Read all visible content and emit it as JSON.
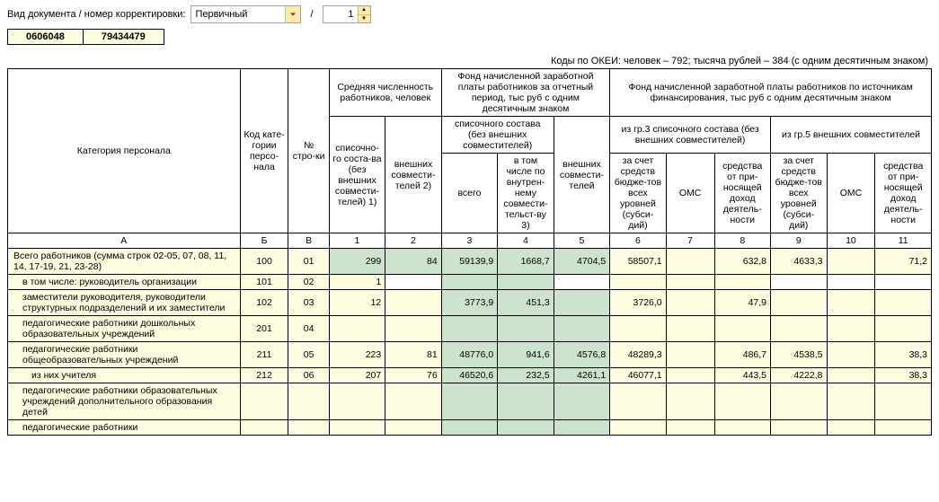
{
  "toolbar": {
    "label": "Вид документа / номер корректировки:",
    "doc_type": "Первичный",
    "separator": "/",
    "correction_no": "1"
  },
  "mini_header": {
    "cells": [
      "0606048",
      "79434479"
    ]
  },
  "okei_line": "Коды по ОКЕИ: человек – 792; тысяча рублей – 384 (с одним десятичным знаком)",
  "colors": {
    "yellow": "#fcfce0",
    "green": "#cde3cd",
    "white": "#ffffff",
    "border": "#000000"
  },
  "header": {
    "cat": "Категория персонала",
    "code": "Код кате-гории персо-нала",
    "row": "№ стро-ки",
    "grp_avg": "Средняя численность работников, человек",
    "grp_fund1": "Фонд начисленной заработной платы работников за отчетный период, тыс руб с одним десятичным знаком",
    "grp_fund2": "Фонд начисленной заработной платы работников по источникам финансирования, тыс руб с одним десятичным знаком",
    "c1": "списочно-го соста-ва (без внешних совмести-телей) 1)",
    "c2": "внешних совмести-телей 2)",
    "c34_top": "списочного состава (без внешних совместителей)",
    "c5": "внешних совмести-телей",
    "c3": "всего",
    "c4": "в том числе по внутрен-нему совмести-тельст-ву 3)",
    "c678_top": "из гр.3 списочного состава (без внешних совместителей)",
    "c91011_top": "из гр.5 внешних совместителей",
    "c6": "за счет средств бюдже-тов всех уровней (субси-дий)",
    "c7": "ОМС",
    "c8": "средства от при-носящей доход деятель-ности",
    "c9": "за счет средств бюдже-тов всех уровней (субси-дий)",
    "c10": "ОМС",
    "c11": "средства от при-носящей доход деятель-ности"
  },
  "letters": [
    "А",
    "Б",
    "В",
    "1",
    "2",
    "3",
    "4",
    "5",
    "6",
    "7",
    "8",
    "9",
    "10",
    "11"
  ],
  "rows": [
    {
      "label": "Всего работников (сумма строк 02-05, 07, 08, 11, 14, 17-19, 21, 23-28)",
      "indent": 0,
      "code": "100",
      "row": "01",
      "cells": [
        {
          "v": "299",
          "c": "green"
        },
        {
          "v": "84",
          "c": "green"
        },
        {
          "v": "59139,9",
          "c": "green"
        },
        {
          "v": "1668,7",
          "c": "green"
        },
        {
          "v": "4704,5",
          "c": "green"
        },
        {
          "v": "58507,1",
          "c": "yellow"
        },
        {
          "v": "",
          "c": "yellow"
        },
        {
          "v": "632,8",
          "c": "yellow"
        },
        {
          "v": "4633,3",
          "c": "yellow"
        },
        {
          "v": "",
          "c": "yellow"
        },
        {
          "v": "71,2",
          "c": "yellow"
        }
      ]
    },
    {
      "label": "в том числе: руководитель организации",
      "indent": 1,
      "code": "101",
      "row": "02",
      "cells": [
        {
          "v": "1",
          "c": "yellow"
        },
        {
          "v": "",
          "c": "white"
        },
        {
          "v": "",
          "c": "green"
        },
        {
          "v": "",
          "c": "green"
        },
        {
          "v": "",
          "c": "white"
        },
        {
          "v": "",
          "c": "yellow"
        },
        {
          "v": "",
          "c": "yellow"
        },
        {
          "v": "",
          "c": "yellow"
        },
        {
          "v": "",
          "c": "white"
        },
        {
          "v": "",
          "c": "white"
        },
        {
          "v": "",
          "c": "white"
        }
      ]
    },
    {
      "label": "заместители руководителя, руководители структурных подразделений и их заместители",
      "indent": 1,
      "code": "102",
      "row": "03",
      "cells": [
        {
          "v": "12",
          "c": "yellow"
        },
        {
          "v": "",
          "c": "yellow"
        },
        {
          "v": "3773,9",
          "c": "green"
        },
        {
          "v": "451,3",
          "c": "green"
        },
        {
          "v": "",
          "c": "green"
        },
        {
          "v": "3726,0",
          "c": "yellow"
        },
        {
          "v": "",
          "c": "yellow"
        },
        {
          "v": "47,9",
          "c": "yellow"
        },
        {
          "v": "",
          "c": "yellow"
        },
        {
          "v": "",
          "c": "yellow"
        },
        {
          "v": "",
          "c": "yellow"
        }
      ]
    },
    {
      "label": "педагогические работники дошкольных образовательных учреждений",
      "indent": 1,
      "code": "201",
      "row": "04",
      "cells": [
        {
          "v": "",
          "c": "yellow"
        },
        {
          "v": "",
          "c": "yellow"
        },
        {
          "v": "",
          "c": "green"
        },
        {
          "v": "",
          "c": "green"
        },
        {
          "v": "",
          "c": "green"
        },
        {
          "v": "",
          "c": "yellow"
        },
        {
          "v": "",
          "c": "yellow"
        },
        {
          "v": "",
          "c": "yellow"
        },
        {
          "v": "",
          "c": "yellow"
        },
        {
          "v": "",
          "c": "yellow"
        },
        {
          "v": "",
          "c": "yellow"
        }
      ]
    },
    {
      "label": "педагогические работники общеобразовательных  учреждений",
      "indent": 1,
      "code": "211",
      "row": "05",
      "cells": [
        {
          "v": "223",
          "c": "yellow"
        },
        {
          "v": "81",
          "c": "yellow"
        },
        {
          "v": "48776,0",
          "c": "green"
        },
        {
          "v": "941,6",
          "c": "green"
        },
        {
          "v": "4576,8",
          "c": "green"
        },
        {
          "v": "48289,3",
          "c": "yellow"
        },
        {
          "v": "",
          "c": "yellow"
        },
        {
          "v": "486,7",
          "c": "yellow"
        },
        {
          "v": "4538,5",
          "c": "yellow"
        },
        {
          "v": "",
          "c": "yellow"
        },
        {
          "v": "38,3",
          "c": "yellow"
        }
      ]
    },
    {
      "label": "из них учителя",
      "indent": 2,
      "code": "212",
      "row": "06",
      "cells": [
        {
          "v": "207",
          "c": "yellow"
        },
        {
          "v": "76",
          "c": "yellow"
        },
        {
          "v": "46520,6",
          "c": "green"
        },
        {
          "v": "232,5",
          "c": "green"
        },
        {
          "v": "4261,1",
          "c": "green"
        },
        {
          "v": "46077,1",
          "c": "yellow"
        },
        {
          "v": "",
          "c": "yellow"
        },
        {
          "v": "443,5",
          "c": "yellow"
        },
        {
          "v": "4222,8",
          "c": "yellow"
        },
        {
          "v": "",
          "c": "yellow"
        },
        {
          "v": "38,3",
          "c": "yellow"
        }
      ]
    },
    {
      "label": "педагогические работники образовательных учреждений дополнительного образования детей",
      "indent": 1,
      "code": "",
      "row": "",
      "cells": [
        {
          "v": "",
          "c": "yellow"
        },
        {
          "v": "",
          "c": "yellow"
        },
        {
          "v": "",
          "c": "green"
        },
        {
          "v": "",
          "c": "green"
        },
        {
          "v": "",
          "c": "green"
        },
        {
          "v": "",
          "c": "yellow"
        },
        {
          "v": "",
          "c": "yellow"
        },
        {
          "v": "",
          "c": "yellow"
        },
        {
          "v": "",
          "c": "yellow"
        },
        {
          "v": "",
          "c": "yellow"
        },
        {
          "v": "",
          "c": "yellow"
        }
      ]
    },
    {
      "label": "педагогические работники",
      "indent": 1,
      "code": "",
      "row": "",
      "cells": [
        {
          "v": "",
          "c": "yellow"
        },
        {
          "v": "",
          "c": "yellow"
        },
        {
          "v": "",
          "c": "green"
        },
        {
          "v": "",
          "c": "green"
        },
        {
          "v": "",
          "c": "green"
        },
        {
          "v": "",
          "c": "yellow"
        },
        {
          "v": "",
          "c": "yellow"
        },
        {
          "v": "",
          "c": "yellow"
        },
        {
          "v": "",
          "c": "yellow"
        },
        {
          "v": "",
          "c": "yellow"
        },
        {
          "v": "",
          "c": "yellow"
        }
      ]
    }
  ]
}
